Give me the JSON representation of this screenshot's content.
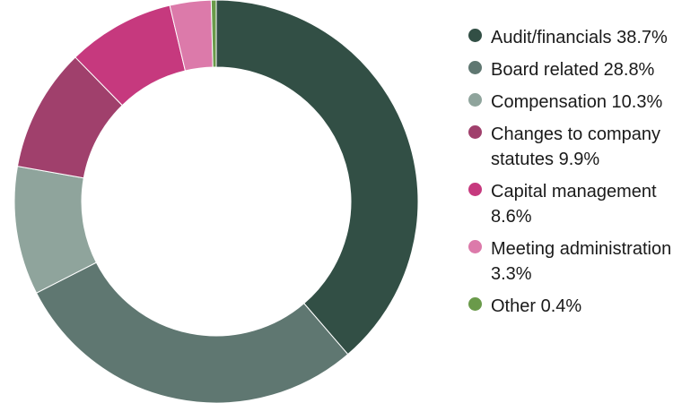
{
  "chart_data": {
    "type": "pie",
    "subtype": "donut",
    "title": "",
    "start_angle": "12 o'clock",
    "direction": "clockwise",
    "legend_position": "right",
    "categories": [
      "Audit/financials",
      "Board related",
      "Compensation",
      "Changes to company statutes",
      "Capital management",
      "Meeting administration",
      "Other"
    ],
    "values": [
      38.7,
      28.8,
      10.3,
      9.9,
      8.6,
      3.3,
      0.4
    ],
    "unit": "%",
    "colors": [
      "#324f45",
      "#5f7771",
      "#8fa49c",
      "#a0406c",
      "#c6397e",
      "#dc7aaa",
      "#6a9a4a"
    ]
  },
  "legend": {
    "items": [
      {
        "label": "Audit/financials 38.7%",
        "color": "#324f45"
      },
      {
        "label": "Board related 28.8%",
        "color": "#5f7771"
      },
      {
        "label": "Compensation 10.3%",
        "color": "#8fa49c"
      },
      {
        "label": "Changes to company statutes 9.9%",
        "color": "#a0406c"
      },
      {
        "label": "Capital management 8.6%",
        "color": "#c6397e"
      },
      {
        "label": "Meeting administration 3.3%",
        "color": "#dc7aaa"
      },
      {
        "label": "Other 0.4%",
        "color": "#6a9a4a"
      }
    ]
  }
}
